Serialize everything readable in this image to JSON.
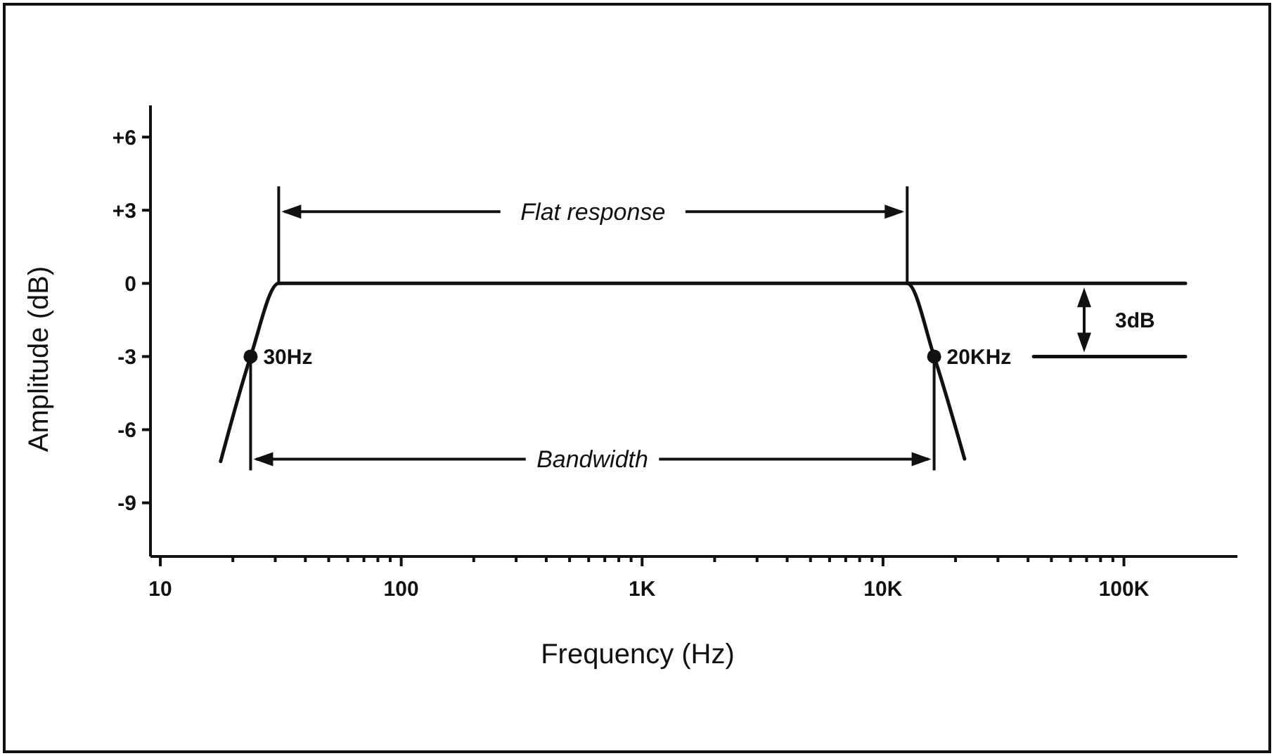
{
  "chart_data": {
    "type": "line",
    "xlabel": "Frequency (Hz)",
    "ylabel": "Amplitude (dB)",
    "log": "x",
    "xlim": [
      9.1,
      296000
    ],
    "ylim": [
      -11.2,
      7.3
    ],
    "xticks": [
      10,
      {
        "value": 20,
        "label": null
      },
      {
        "value": 30,
        "label": null
      },
      {
        "value": 40,
        "label": null
      },
      {
        "value": 50,
        "label": null
      },
      {
        "value": 60,
        "label": null
      },
      {
        "value": 70,
        "label": null
      },
      {
        "value": 80,
        "label": null
      },
      {
        "value": 90,
        "label": null
      },
      100,
      {
        "value": 200,
        "label": null
      },
      {
        "value": 300,
        "label": null
      },
      {
        "value": 400,
        "label": null
      },
      {
        "value": 500,
        "label": null
      },
      {
        "value": 600,
        "label": null
      },
      {
        "value": 700,
        "label": null
      },
      {
        "value": 800,
        "label": null
      },
      {
        "value": 900,
        "label": null
      },
      {
        "value": 1000,
        "label": "1K"
      },
      {
        "value": 2000,
        "label": null
      },
      {
        "value": 3000,
        "label": null
      },
      {
        "value": 4000,
        "label": null
      },
      {
        "value": 5000,
        "label": null
      },
      {
        "value": 6000,
        "label": null
      },
      {
        "value": 7000,
        "label": null
      },
      {
        "value": 8000,
        "label": null
      },
      {
        "value": 9000,
        "label": null
      },
      {
        "value": 10000,
        "label": "10K"
      },
      {
        "value": 20000,
        "label": null
      },
      {
        "value": 30000,
        "label": null
      },
      {
        "value": 40000,
        "label": null
      },
      {
        "value": 50000,
        "label": null
      },
      {
        "value": 60000,
        "label": null
      },
      {
        "value": 70000,
        "label": null
      },
      {
        "value": 80000,
        "label": null
      },
      {
        "value": 90000,
        "label": null
      },
      {
        "value": 100000,
        "label": "100K"
      }
    ],
    "yticks": [
      {
        "value": 6,
        "label": "+6"
      },
      {
        "value": 3,
        "label": "+3"
      },
      0,
      -3,
      -6,
      -9
    ],
    "grid": false,
    "line_style": "solid",
    "series": [
      {
        "color": "#111111",
        "marker": "none",
        "x": [
          17.8,
          23.7,
          31,
          12600,
          16300,
          21800
        ],
        "values": [
          -7.3,
          -3,
          0,
          0,
          -3,
          -7.2
        ]
      },
      {
        "color": "#111111",
        "marker": "none",
        "x": [
          12600,
          180000
        ],
        "values": [
          0,
          0
        ]
      },
      {
        "color": "#111111",
        "marker": "none",
        "x": [
          42200,
          180000
        ],
        "values": [
          -3,
          -3
        ]
      },
      {
        "type": "scatter",
        "color": "#111111",
        "marker": "circle",
        "x": [
          23.7,
          16300
        ],
        "values": [
          -3,
          -3
        ]
      }
    ],
    "annotations": [
      "Flat response",
      "Bandwidth",
      "3dB",
      {
        "text": "30Hz",
        "x": 23.7,
        "y": -3
      },
      {
        "text": "20KHz",
        "x": 16300,
        "y": -3
      }
    ]
  }
}
